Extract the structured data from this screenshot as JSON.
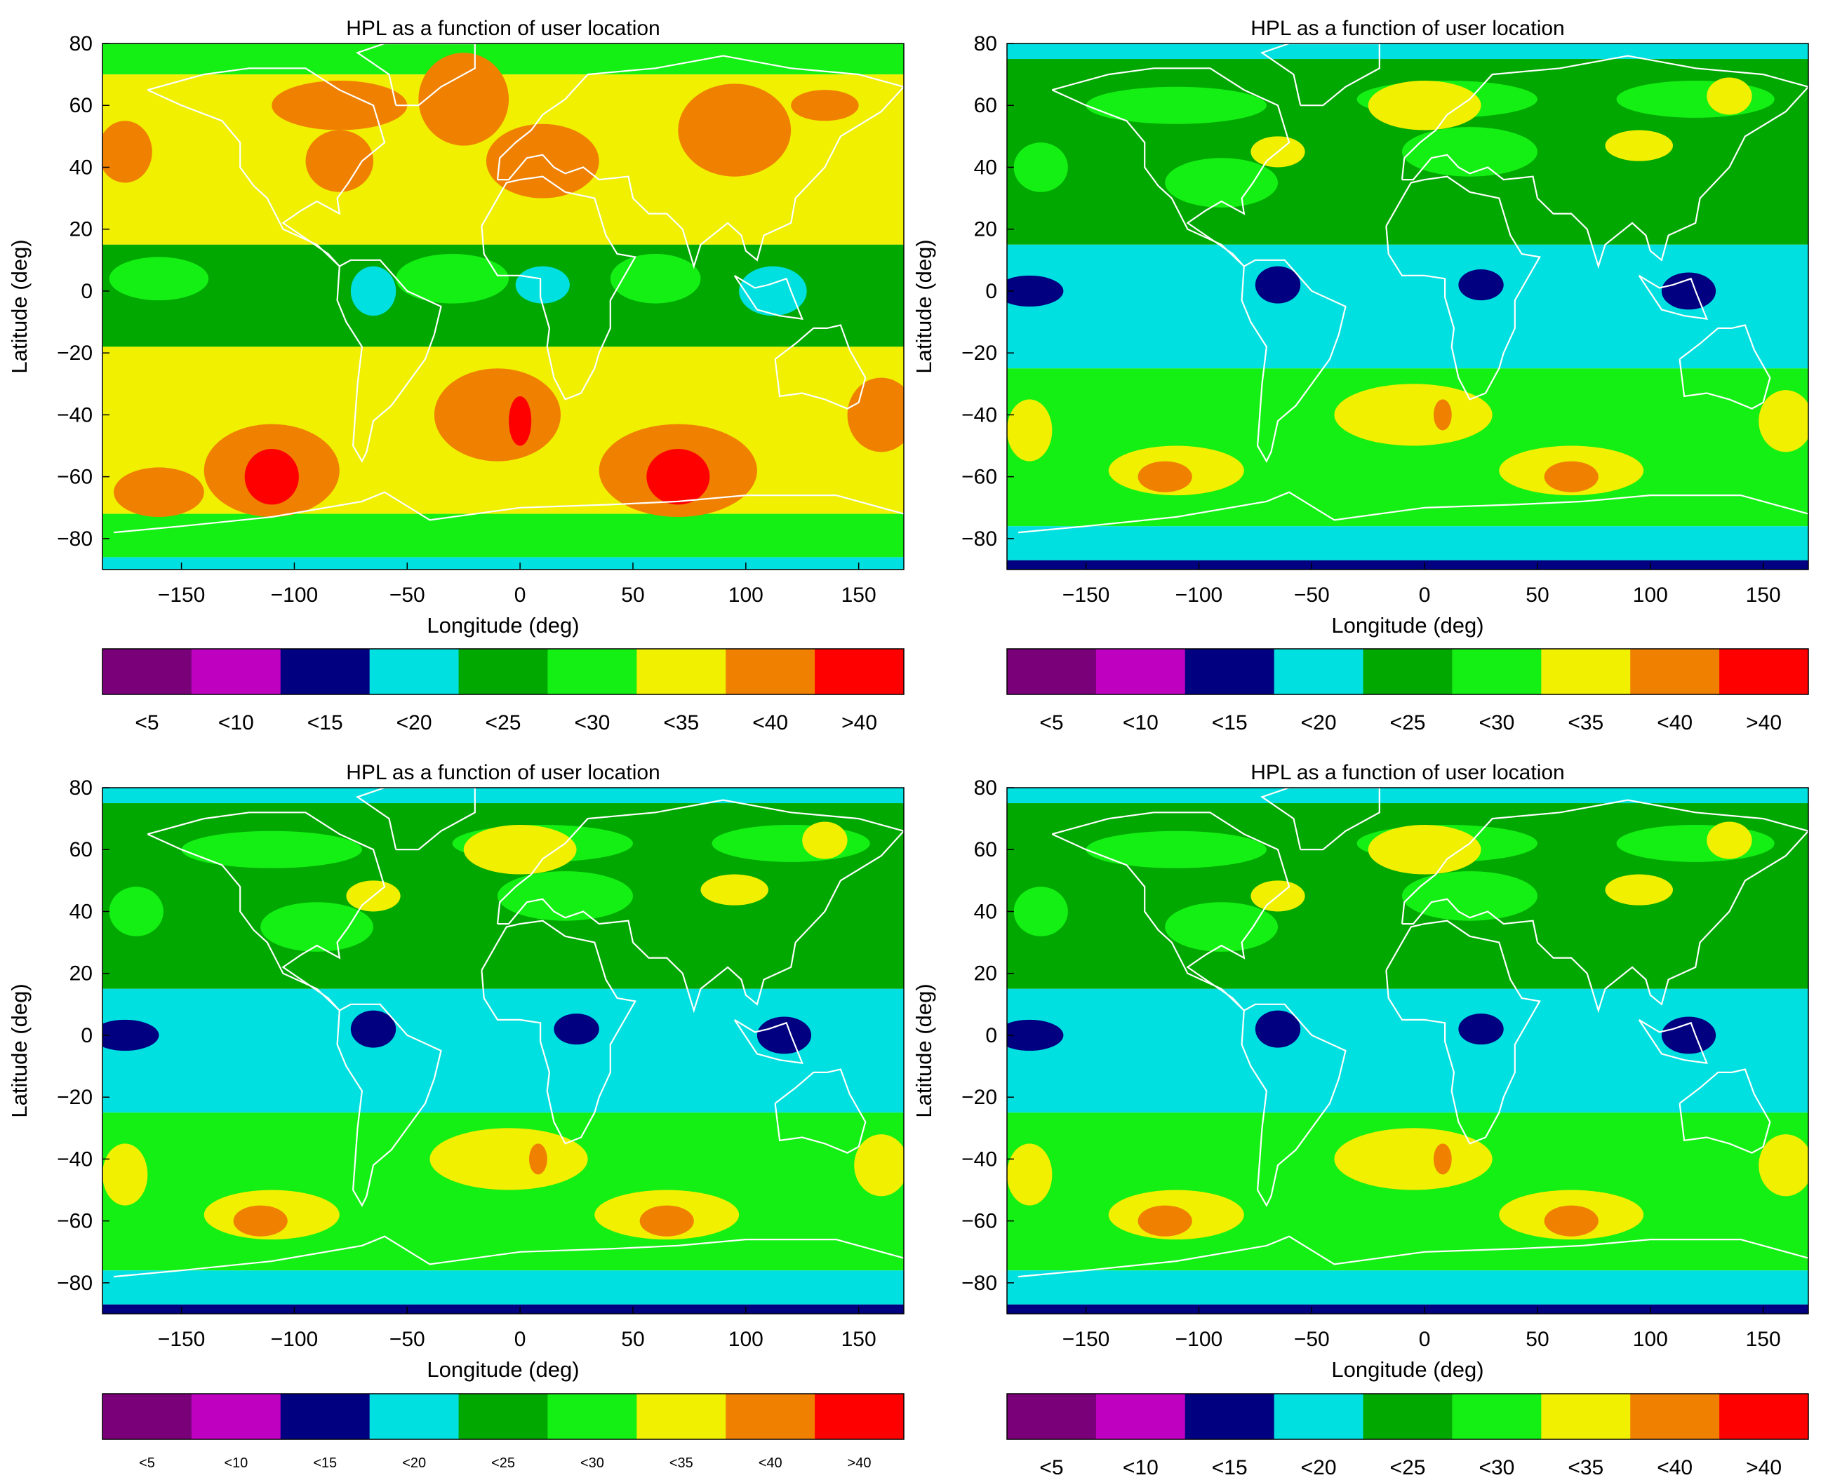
{
  "figure": {
    "panel_count": 4,
    "colorbar": {
      "labels": [
        "<5",
        "<10",
        "<15",
        "<20",
        "<25",
        "<30",
        "<35",
        "<40",
        ">40"
      ],
      "colors": [
        "#7a007a",
        "#c000c0",
        "#000080",
        "#00e0e0",
        "#00a800",
        "#14f014",
        "#f0f000",
        "#f08000",
        "#ff0000"
      ]
    },
    "coastline_color": "#ffffff",
    "axis_color": "#000000"
  },
  "chart_data": [
    {
      "type": "heatmap",
      "title": "HPL as a function of user location",
      "xlabel": "Longitude (deg)",
      "ylabel": "Latitude (deg)",
      "xlim": [
        -185,
        170
      ],
      "ylim": [
        -90,
        80
      ],
      "xticks": [
        -150,
        -100,
        -50,
        0,
        50,
        100,
        150
      ],
      "yticks": [
        80,
        60,
        40,
        20,
        0,
        -20,
        -40,
        -60,
        -80
      ],
      "xtick_labels": [
        "−150",
        "−100",
        "−50",
        "0",
        "50",
        "100",
        "150"
      ],
      "ytick_labels": [
        "80",
        "60",
        "40",
        "20",
        "0",
        "−20",
        "−40",
        "−60",
        "−80"
      ],
      "legend_labels": [
        "<5",
        "<10",
        "<15",
        "<20",
        "<25",
        "<30",
        "<35",
        "<40",
        ">40"
      ],
      "bands": [
        {
          "lat_from": 70,
          "lat_to": 80,
          "category": "<30"
        },
        {
          "lat_from": 15,
          "lat_to": 70,
          "category": "<35"
        },
        {
          "lat_from": -18,
          "lat_to": 15,
          "category": "<25"
        },
        {
          "lat_from": -72,
          "lat_to": -18,
          "category": "<35"
        },
        {
          "lat_from": -86,
          "lat_to": -72,
          "category": "<30"
        },
        {
          "lat_from": -90,
          "lat_to": -86,
          "category": "<20"
        }
      ],
      "regions": [
        {
          "lon": -175,
          "lat": 45,
          "rlon": 12,
          "rlat": 10,
          "category": "<40"
        },
        {
          "lon": -80,
          "lat": 60,
          "rlon": 30,
          "rlat": 8,
          "category": "<40"
        },
        {
          "lon": -80,
          "lat": 42,
          "rlon": 15,
          "rlat": 10,
          "category": "<40"
        },
        {
          "lon": -25,
          "lat": 62,
          "rlon": 20,
          "rlat": 15,
          "category": "<40"
        },
        {
          "lon": 10,
          "lat": 42,
          "rlon": 25,
          "rlat": 12,
          "category": "<40"
        },
        {
          "lon": 95,
          "lat": 52,
          "rlon": 25,
          "rlat": 15,
          "category": "<40"
        },
        {
          "lon": 135,
          "lat": 60,
          "rlon": 15,
          "rlat": 5,
          "category": "<40"
        },
        {
          "lon": -160,
          "lat": 4,
          "rlon": 22,
          "rlat": 7,
          "category": "<30"
        },
        {
          "lon": -30,
          "lat": 4,
          "rlon": 25,
          "rlat": 8,
          "category": "<30"
        },
        {
          "lon": 60,
          "lat": 4,
          "rlon": 20,
          "rlat": 8,
          "category": "<30"
        },
        {
          "lon": -65,
          "lat": 0,
          "rlon": 10,
          "rlat": 8,
          "category": "<20"
        },
        {
          "lon": 10,
          "lat": 2,
          "rlon": 12,
          "rlat": 6,
          "category": "<20"
        },
        {
          "lon": 112,
          "lat": 0,
          "rlon": 15,
          "rlat": 8,
          "category": "<20"
        },
        {
          "lon": -110,
          "lat": -58,
          "rlon": 30,
          "rlat": 15,
          "category": "<40"
        },
        {
          "lon": -160,
          "lat": -65,
          "rlon": 20,
          "rlat": 8,
          "category": "<40"
        },
        {
          "lon": -10,
          "lat": -40,
          "rlon": 28,
          "rlat": 15,
          "category": "<40"
        },
        {
          "lon": 70,
          "lat": -58,
          "rlon": 35,
          "rlat": 15,
          "category": "<40"
        },
        {
          "lon": 160,
          "lat": -40,
          "rlon": 15,
          "rlat": 12,
          "category": "<40"
        },
        {
          "lon": -110,
          "lat": -60,
          "rlon": 12,
          "rlat": 9,
          "category": ">40"
        },
        {
          "lon": 70,
          "lat": -60,
          "rlon": 14,
          "rlat": 9,
          "category": ">40"
        },
        {
          "lon": 0,
          "lat": -42,
          "rlon": 5,
          "rlat": 8,
          "category": ">40"
        }
      ]
    },
    {
      "type": "heatmap",
      "title": "HPL as a function of user location",
      "xlabel": "Longitude (deg)",
      "ylabel": "Latitude (deg)",
      "xlim": [
        -185,
        170
      ],
      "ylim": [
        -90,
        80
      ],
      "xticks": [
        -150,
        -100,
        -50,
        0,
        50,
        100,
        150
      ],
      "yticks": [
        80,
        60,
        40,
        20,
        0,
        -20,
        -40,
        -60,
        -80
      ],
      "xtick_labels": [
        "−150",
        "−100",
        "−50",
        "0",
        "50",
        "100",
        "150"
      ],
      "ytick_labels": [
        "80",
        "60",
        "40",
        "20",
        "0",
        "−20",
        "−40",
        "−60",
        "−80"
      ],
      "legend_labels": [
        "<5",
        "<10",
        "<15",
        "<20",
        "<25",
        "<30",
        "<35",
        "<40",
        ">40"
      ],
      "bands": [
        {
          "lat_from": 75,
          "lat_to": 80,
          "category": "<20"
        },
        {
          "lat_from": 15,
          "lat_to": 75,
          "category": "<25"
        },
        {
          "lat_from": -25,
          "lat_to": 15,
          "category": "<20"
        },
        {
          "lat_from": -76,
          "lat_to": -25,
          "category": "<30"
        },
        {
          "lat_from": -87,
          "lat_to": -76,
          "category": "<20"
        },
        {
          "lat_from": -90,
          "lat_to": -87,
          "category": "<15"
        }
      ],
      "regions": [
        {
          "lon": -110,
          "lat": 60,
          "rlon": 40,
          "rlat": 6,
          "category": "<30"
        },
        {
          "lon": 10,
          "lat": 62,
          "rlon": 40,
          "rlat": 6,
          "category": "<30"
        },
        {
          "lon": 120,
          "lat": 62,
          "rlon": 35,
          "rlat": 6,
          "category": "<30"
        },
        {
          "lon": -170,
          "lat": 40,
          "rlon": 12,
          "rlat": 8,
          "category": "<30"
        },
        {
          "lon": -90,
          "lat": 35,
          "rlon": 25,
          "rlat": 8,
          "category": "<30"
        },
        {
          "lon": 20,
          "lat": 45,
          "rlon": 30,
          "rlat": 8,
          "category": "<30"
        },
        {
          "lon": 0,
          "lat": 60,
          "rlon": 25,
          "rlat": 8,
          "category": "<35"
        },
        {
          "lon": 135,
          "lat": 63,
          "rlon": 10,
          "rlat": 6,
          "category": "<35"
        },
        {
          "lon": -65,
          "lat": 45,
          "rlon": 12,
          "rlat": 5,
          "category": "<35"
        },
        {
          "lon": 95,
          "lat": 47,
          "rlon": 15,
          "rlat": 5,
          "category": "<35"
        },
        {
          "lon": -175,
          "lat": 0,
          "rlon": 15,
          "rlat": 5,
          "category": "<15"
        },
        {
          "lon": -65,
          "lat": 2,
          "rlon": 10,
          "rlat": 6,
          "category": "<15"
        },
        {
          "lon": 25,
          "lat": 2,
          "rlon": 10,
          "rlat": 5,
          "category": "<15"
        },
        {
          "lon": 117,
          "lat": 0,
          "rlon": 12,
          "rlat": 6,
          "category": "<15"
        },
        {
          "lon": -110,
          "lat": -58,
          "rlon": 30,
          "rlat": 8,
          "category": "<35"
        },
        {
          "lon": -5,
          "lat": -40,
          "rlon": 35,
          "rlat": 10,
          "category": "<35"
        },
        {
          "lon": 65,
          "lat": -58,
          "rlon": 32,
          "rlat": 8,
          "category": "<35"
        },
        {
          "lon": 160,
          "lat": -42,
          "rlon": 12,
          "rlat": 10,
          "category": "<35"
        },
        {
          "lon": -175,
          "lat": -45,
          "rlon": 10,
          "rlat": 10,
          "category": "<35"
        },
        {
          "lon": -115,
          "lat": -60,
          "rlon": 12,
          "rlat": 5,
          "category": "<40"
        },
        {
          "lon": 65,
          "lat": -60,
          "rlon": 12,
          "rlat": 5,
          "category": "<40"
        },
        {
          "lon": 8,
          "lat": -40,
          "rlon": 4,
          "rlat": 5,
          "category": "<40"
        }
      ]
    },
    {
      "type": "heatmap",
      "title": "HPL as a function of user location",
      "xlabel": "Longitude (deg)",
      "ylabel": "Latitude (deg)",
      "xlim": [
        -185,
        170
      ],
      "ylim": [
        -90,
        80
      ],
      "xticks": [
        -150,
        -100,
        -50,
        0,
        50,
        100,
        150
      ],
      "yticks": [
        80,
        60,
        40,
        20,
        0,
        -20,
        -40,
        -60,
        -80
      ],
      "xtick_labels": [
        "−150",
        "−100",
        "−50",
        "0",
        "50",
        "100",
        "150"
      ],
      "ytick_labels": [
        "80",
        "60",
        "40",
        "20",
        "0",
        "−20",
        "−40",
        "−60",
        "−80"
      ],
      "legend_labels": [
        "<5",
        "<10",
        "<15",
        "<20",
        "<25",
        "<30",
        "<35",
        "<40",
        ">40"
      ],
      "bands": [
        {
          "lat_from": 75,
          "lat_to": 80,
          "category": "<20"
        },
        {
          "lat_from": 15,
          "lat_to": 75,
          "category": "<25"
        },
        {
          "lat_from": -25,
          "lat_to": 15,
          "category": "<20"
        },
        {
          "lat_from": -76,
          "lat_to": -25,
          "category": "<30"
        },
        {
          "lat_from": -87,
          "lat_to": -76,
          "category": "<20"
        },
        {
          "lat_from": -90,
          "lat_to": -87,
          "category": "<15"
        }
      ],
      "regions": [
        {
          "lon": -110,
          "lat": 60,
          "rlon": 40,
          "rlat": 6,
          "category": "<30"
        },
        {
          "lon": 10,
          "lat": 62,
          "rlon": 40,
          "rlat": 6,
          "category": "<30"
        },
        {
          "lon": 120,
          "lat": 62,
          "rlon": 35,
          "rlat": 6,
          "category": "<30"
        },
        {
          "lon": -170,
          "lat": 40,
          "rlon": 12,
          "rlat": 8,
          "category": "<30"
        },
        {
          "lon": -90,
          "lat": 35,
          "rlon": 25,
          "rlat": 8,
          "category": "<30"
        },
        {
          "lon": 20,
          "lat": 45,
          "rlon": 30,
          "rlat": 8,
          "category": "<30"
        },
        {
          "lon": 0,
          "lat": 60,
          "rlon": 25,
          "rlat": 8,
          "category": "<35"
        },
        {
          "lon": 135,
          "lat": 63,
          "rlon": 10,
          "rlat": 6,
          "category": "<35"
        },
        {
          "lon": -65,
          "lat": 45,
          "rlon": 12,
          "rlat": 5,
          "category": "<35"
        },
        {
          "lon": 95,
          "lat": 47,
          "rlon": 15,
          "rlat": 5,
          "category": "<35"
        },
        {
          "lon": -175,
          "lat": 0,
          "rlon": 15,
          "rlat": 5,
          "category": "<15"
        },
        {
          "lon": -65,
          "lat": 2,
          "rlon": 10,
          "rlat": 6,
          "category": "<15"
        },
        {
          "lon": 25,
          "lat": 2,
          "rlon": 10,
          "rlat": 5,
          "category": "<15"
        },
        {
          "lon": 117,
          "lat": 0,
          "rlon": 12,
          "rlat": 6,
          "category": "<15"
        },
        {
          "lon": -110,
          "lat": -58,
          "rlon": 30,
          "rlat": 8,
          "category": "<35"
        },
        {
          "lon": -5,
          "lat": -40,
          "rlon": 35,
          "rlat": 10,
          "category": "<35"
        },
        {
          "lon": 65,
          "lat": -58,
          "rlon": 32,
          "rlat": 8,
          "category": "<35"
        },
        {
          "lon": 160,
          "lat": -42,
          "rlon": 12,
          "rlat": 10,
          "category": "<35"
        },
        {
          "lon": -175,
          "lat": -45,
          "rlon": 10,
          "rlat": 10,
          "category": "<35"
        },
        {
          "lon": -115,
          "lat": -60,
          "rlon": 12,
          "rlat": 5,
          "category": "<40"
        },
        {
          "lon": 65,
          "lat": -60,
          "rlon": 12,
          "rlat": 5,
          "category": "<40"
        },
        {
          "lon": 8,
          "lat": -40,
          "rlon": 4,
          "rlat": 5,
          "category": "<40"
        }
      ]
    },
    {
      "type": "heatmap",
      "title": "HPL as a function of user location",
      "xlabel": "Longitude (deg)",
      "ylabel": "Latitude (deg)",
      "xlim": [
        -185,
        170
      ],
      "ylim": [
        -90,
        80
      ],
      "xticks": [
        -150,
        -100,
        -50,
        0,
        50,
        100,
        150
      ],
      "yticks": [
        80,
        60,
        40,
        20,
        0,
        -20,
        -40,
        -60,
        -80
      ],
      "xtick_labels": [
        "−150",
        "−100",
        "−50",
        "0",
        "50",
        "100",
        "150"
      ],
      "ytick_labels": [
        "80",
        "60",
        "40",
        "20",
        "0",
        "−20",
        "−40",
        "−60",
        "−80"
      ],
      "legend_labels": [
        "<5",
        "<10",
        "<15",
        "<20",
        "<25",
        "<30",
        "<35",
        "<40",
        ">40"
      ],
      "bands": [
        {
          "lat_from": 75,
          "lat_to": 80,
          "category": "<20"
        },
        {
          "lat_from": 15,
          "lat_to": 75,
          "category": "<25"
        },
        {
          "lat_from": -25,
          "lat_to": 15,
          "category": "<20"
        },
        {
          "lat_from": -76,
          "lat_to": -25,
          "category": "<30"
        },
        {
          "lat_from": -87,
          "lat_to": -76,
          "category": "<20"
        },
        {
          "lat_from": -90,
          "lat_to": -87,
          "category": "<15"
        }
      ],
      "regions": [
        {
          "lon": -110,
          "lat": 60,
          "rlon": 40,
          "rlat": 6,
          "category": "<30"
        },
        {
          "lon": 10,
          "lat": 62,
          "rlon": 40,
          "rlat": 6,
          "category": "<30"
        },
        {
          "lon": 120,
          "lat": 62,
          "rlon": 35,
          "rlat": 6,
          "category": "<30"
        },
        {
          "lon": -170,
          "lat": 40,
          "rlon": 12,
          "rlat": 8,
          "category": "<30"
        },
        {
          "lon": -90,
          "lat": 35,
          "rlon": 25,
          "rlat": 8,
          "category": "<30"
        },
        {
          "lon": 20,
          "lat": 45,
          "rlon": 30,
          "rlat": 8,
          "category": "<30"
        },
        {
          "lon": 0,
          "lat": 60,
          "rlon": 25,
          "rlat": 8,
          "category": "<35"
        },
        {
          "lon": 135,
          "lat": 63,
          "rlon": 10,
          "rlat": 6,
          "category": "<35"
        },
        {
          "lon": -65,
          "lat": 45,
          "rlon": 12,
          "rlat": 5,
          "category": "<35"
        },
        {
          "lon": 95,
          "lat": 47,
          "rlon": 15,
          "rlat": 5,
          "category": "<35"
        },
        {
          "lon": -175,
          "lat": 0,
          "rlon": 15,
          "rlat": 5,
          "category": "<15"
        },
        {
          "lon": -65,
          "lat": 2,
          "rlon": 10,
          "rlat": 6,
          "category": "<15"
        },
        {
          "lon": 25,
          "lat": 2,
          "rlon": 10,
          "rlat": 5,
          "category": "<15"
        },
        {
          "lon": 117,
          "lat": 0,
          "rlon": 12,
          "rlat": 6,
          "category": "<15"
        },
        {
          "lon": -110,
          "lat": -58,
          "rlon": 30,
          "rlat": 8,
          "category": "<35"
        },
        {
          "lon": -5,
          "lat": -40,
          "rlon": 35,
          "rlat": 10,
          "category": "<35"
        },
        {
          "lon": 65,
          "lat": -58,
          "rlon": 32,
          "rlat": 8,
          "category": "<35"
        },
        {
          "lon": 160,
          "lat": -42,
          "rlon": 12,
          "rlat": 10,
          "category": "<35"
        },
        {
          "lon": -175,
          "lat": -45,
          "rlon": 10,
          "rlat": 10,
          "category": "<35"
        },
        {
          "lon": -115,
          "lat": -60,
          "rlon": 12,
          "rlat": 5,
          "category": "<40"
        },
        {
          "lon": 65,
          "lat": -60,
          "rlon": 12,
          "rlat": 5,
          "category": "<40"
        },
        {
          "lon": 8,
          "lat": -40,
          "rlon": 4,
          "rlat": 5,
          "category": "<40"
        }
      ]
    }
  ]
}
